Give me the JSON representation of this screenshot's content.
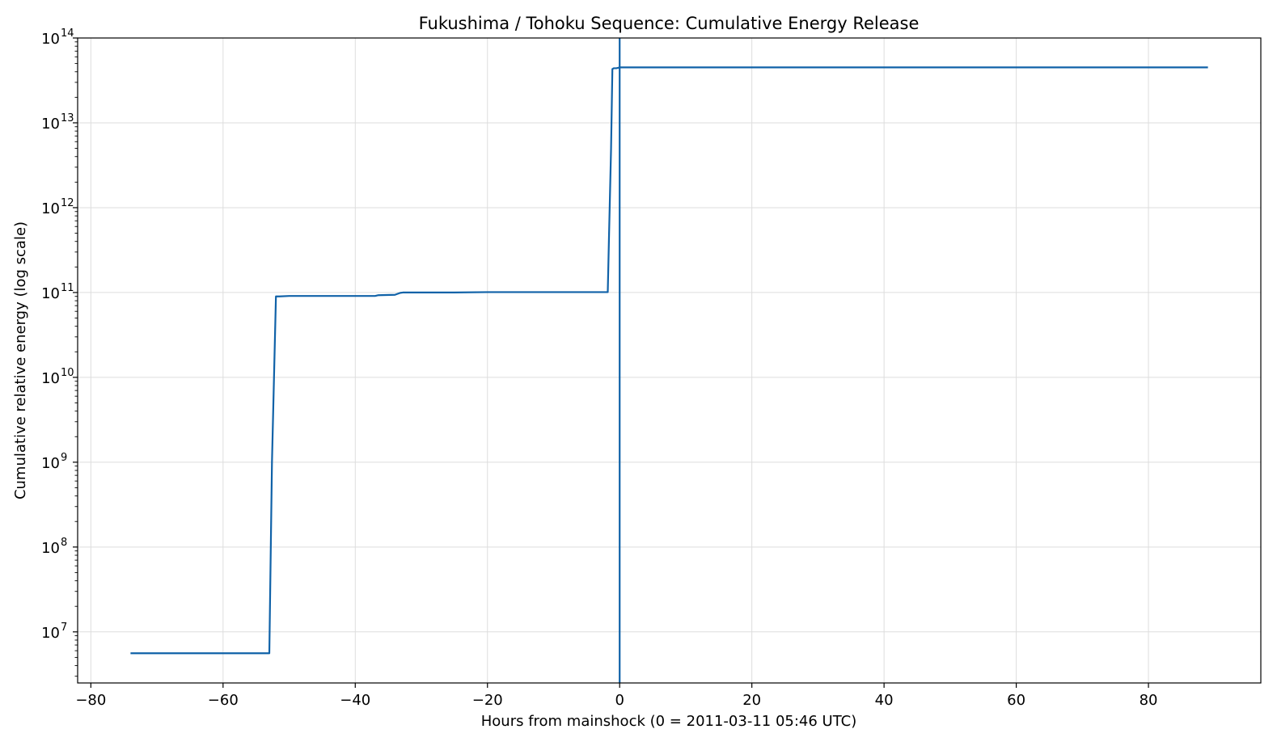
{
  "chart_data": {
    "type": "line",
    "title": "Fukushima / Tohoku Sequence: Cumulative Energy Release",
    "xlabel": "Hours from mainshock (0 = 2011-03-11 05:46 UTC)",
    "ylabel": "Cumulative relative energy (log scale)",
    "yscale": "log",
    "xlim": [
      -82,
      97
    ],
    "ylim": [
      2500000.0,
      100000000000000.0
    ],
    "xticks": [
      -80,
      -60,
      -40,
      -20,
      0,
      20,
      40,
      60,
      80
    ],
    "xtick_labels": [
      "−80",
      "−60",
      "−40",
      "−20",
      "0",
      "20",
      "40",
      "60",
      "80"
    ],
    "yticks": [
      {
        "exp": 7,
        "base": "10",
        "sup": "7"
      },
      {
        "exp": 8,
        "base": "10",
        "sup": "8"
      },
      {
        "exp": 9,
        "base": "10",
        "sup": "9"
      },
      {
        "exp": 10,
        "base": "10",
        "sup": "10"
      },
      {
        "exp": 11,
        "base": "10",
        "sup": "11"
      },
      {
        "exp": 12,
        "base": "10",
        "sup": "12"
      },
      {
        "exp": 13,
        "base": "10",
        "sup": "13"
      },
      {
        "exp": 14,
        "base": "10",
        "sup": "14"
      }
    ],
    "grid": true,
    "colors": {
      "series": "#1062a8",
      "grid": "#dddddd",
      "axis": "#000000"
    },
    "series": [
      {
        "x": [
          -74,
          -53,
          -52.6,
          -52,
          -51.5,
          -50,
          -37,
          -36.5,
          -34,
          -33.2,
          -32.8,
          -25,
          -20,
          -10,
          -1.8,
          -1.6,
          -1.3,
          -1.1,
          -0.9,
          -0.5,
          0,
          0.2,
          10,
          50,
          89
        ],
        "y": [
          5600000.0,
          5600000.0,
          1000000000.0,
          90000000000.0,
          90000000000.0,
          91000000000.0,
          91000000000.0,
          93000000000.0,
          94000000000.0,
          99000000000.0,
          100000000000.0,
          100000000000.0,
          101000000000.0,
          101000000000.0,
          101000000000.0,
          500000000000.0,
          5000000000000.0,
          43000000000000.0,
          44000000000000.0,
          44000000000000.0,
          45000000000000.0,
          45000000000000.0,
          45000000000000.0,
          45000000000000.0,
          45000000000000.0
        ]
      }
    ],
    "annotations": [
      {
        "type": "vline",
        "x": 0
      }
    ]
  }
}
